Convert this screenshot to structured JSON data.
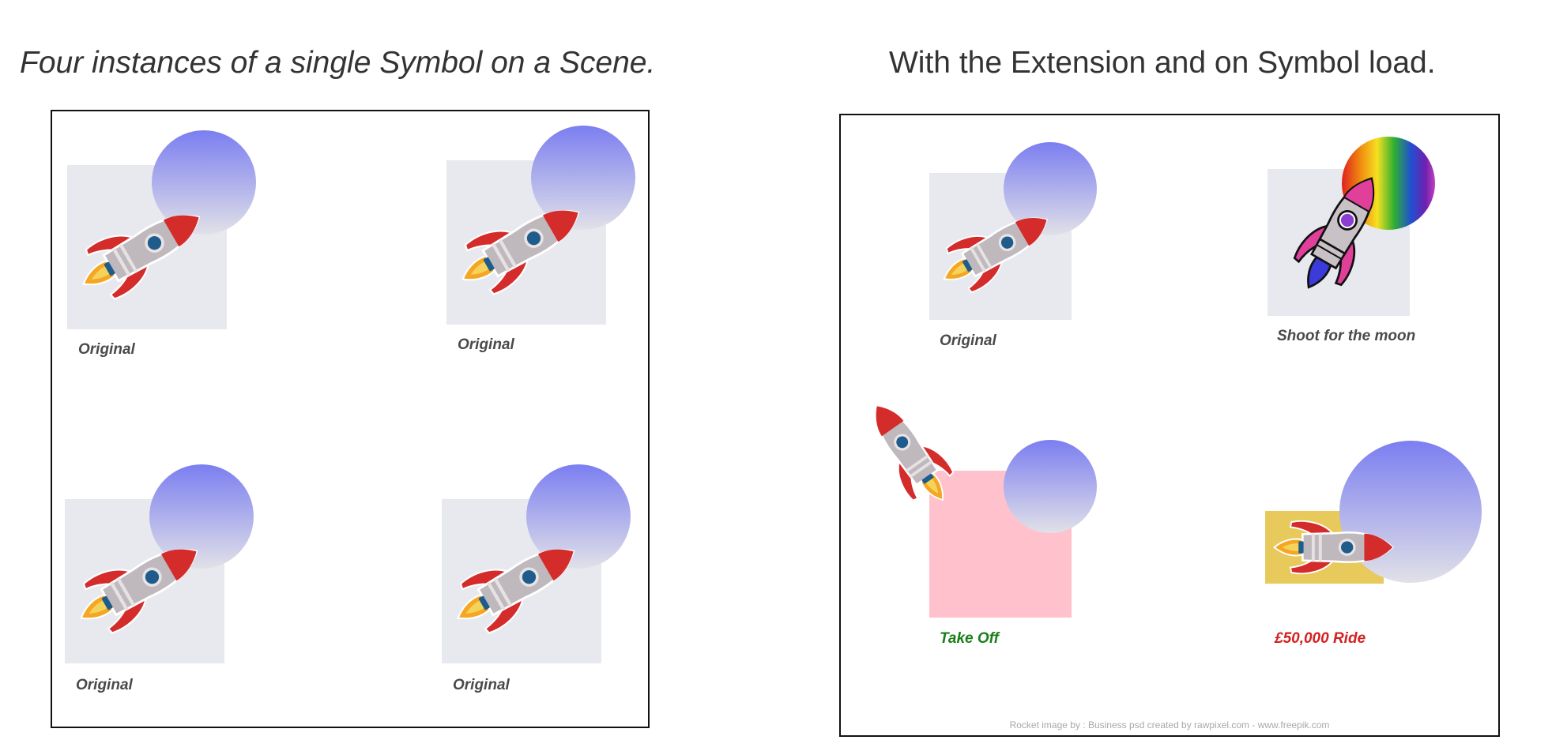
{
  "headings": {
    "left": "Four instances of a single Symbol on a Scene.",
    "right": "With the Extension and on Symbol load."
  },
  "left_panel": {
    "symbols": [
      {
        "caption": "Original"
      },
      {
        "caption": "Original"
      },
      {
        "caption": "Original"
      },
      {
        "caption": "Original"
      }
    ]
  },
  "right_panel": {
    "symbols": [
      {
        "caption": "Original"
      },
      {
        "caption": "Shoot for the moon"
      },
      {
        "caption": "Take Off"
      },
      {
        "caption": "£50,000 Ride"
      }
    ],
    "credit": "Rocket image by : Business psd created by rawpixel.com - www.freepik.com"
  },
  "colors": {
    "square_default": "#e8e9ee",
    "square_pink": "#ffc2cd",
    "square_gold": "#e8c95c",
    "moon_top": "#7b7ef0",
    "moon_bottom": "#e1e1e8",
    "caption_green": "#1a7f1a",
    "caption_red": "#d42020"
  }
}
